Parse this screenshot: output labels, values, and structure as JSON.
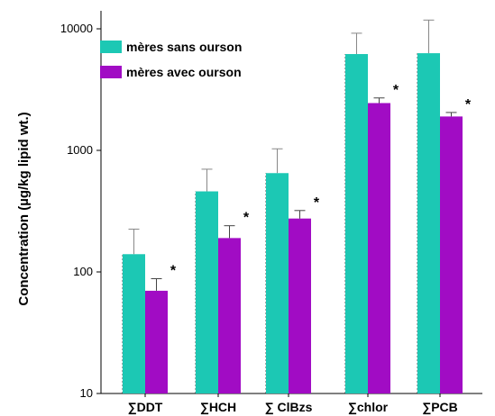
{
  "chart_data": {
    "type": "bar",
    "title": "",
    "ylabel": "Concentration (µg/kg lipid wt.)",
    "xlabel": "",
    "yscale": "log",
    "ylim": [
      10,
      10000
    ],
    "yticks": [
      "10",
      "100",
      "1000",
      "10000"
    ],
    "categories": [
      "∑DDT",
      "∑HCH",
      "∑ ClBzs",
      "∑chlor",
      "∑PCB"
    ],
    "legend_position": "top-left",
    "series": [
      {
        "name": "mères sans ourson",
        "color": "#1cc8b4",
        "values": [
          140,
          460,
          650,
          6200,
          6300
        ],
        "error_upper": [
          225,
          700,
          1030,
          9200,
          11800
        ]
      },
      {
        "name": "mères avec ourson",
        "color": "#a10cc4",
        "values": [
          70,
          190,
          275,
          2450,
          1900
        ],
        "error_upper": [
          88,
          240,
          320,
          2700,
          2050
        ]
      }
    ],
    "annotations": [
      "*",
      "*",
      "*",
      "*",
      "*"
    ]
  }
}
